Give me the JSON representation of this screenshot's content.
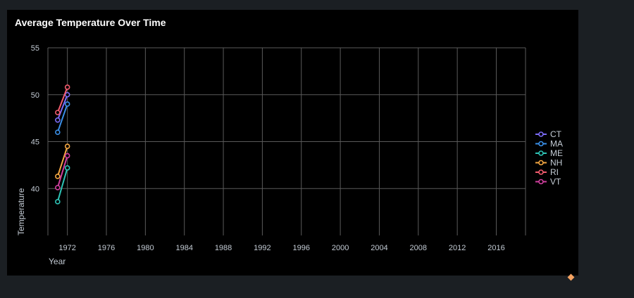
{
  "panel": {
    "title": "Average Temperature Over Time"
  },
  "colors": {
    "page_background": "#1b1f23",
    "panel_background": "#000000",
    "gridline": "#5a5a5a",
    "text": "#c3cbd4",
    "corner_marker": "#f4a261"
  },
  "chart_data": {
    "type": "line",
    "title": "Average Temperature Over Time",
    "xlabel": "Year",
    "ylabel": "Temperature",
    "xlim": [
      1970,
      2019
    ],
    "ylim": [
      35,
      55
    ],
    "yticks": [
      40,
      45,
      50,
      55
    ],
    "xticks": [
      1972,
      1976,
      1980,
      1984,
      1988,
      1992,
      1996,
      2000,
      2004,
      2008,
      2012,
      2016
    ],
    "grid": true,
    "legend_position": "right",
    "series": [
      {
        "name": "CT",
        "color": "#7b6cf6",
        "x": [
          1971,
          1972
        ],
        "y": [
          47.3,
          50.0
        ]
      },
      {
        "name": "MA",
        "color": "#3a8fe8",
        "x": [
          1971,
          1972
        ],
        "y": [
          46.0,
          49.0
        ]
      },
      {
        "name": "ME",
        "color": "#2ec4b6",
        "x": [
          1971,
          1972
        ],
        "y": [
          38.6,
          42.2
        ]
      },
      {
        "name": "NH",
        "color": "#f5a742",
        "x": [
          1971,
          1972
        ],
        "y": [
          41.3,
          44.5
        ]
      },
      {
        "name": "RI",
        "color": "#f25c6e",
        "x": [
          1971,
          1972
        ],
        "y": [
          48.1,
          50.8
        ]
      },
      {
        "name": "VT",
        "color": "#d13f9f",
        "x": [
          1971,
          1972
        ],
        "y": [
          40.1,
          43.5
        ]
      }
    ]
  }
}
